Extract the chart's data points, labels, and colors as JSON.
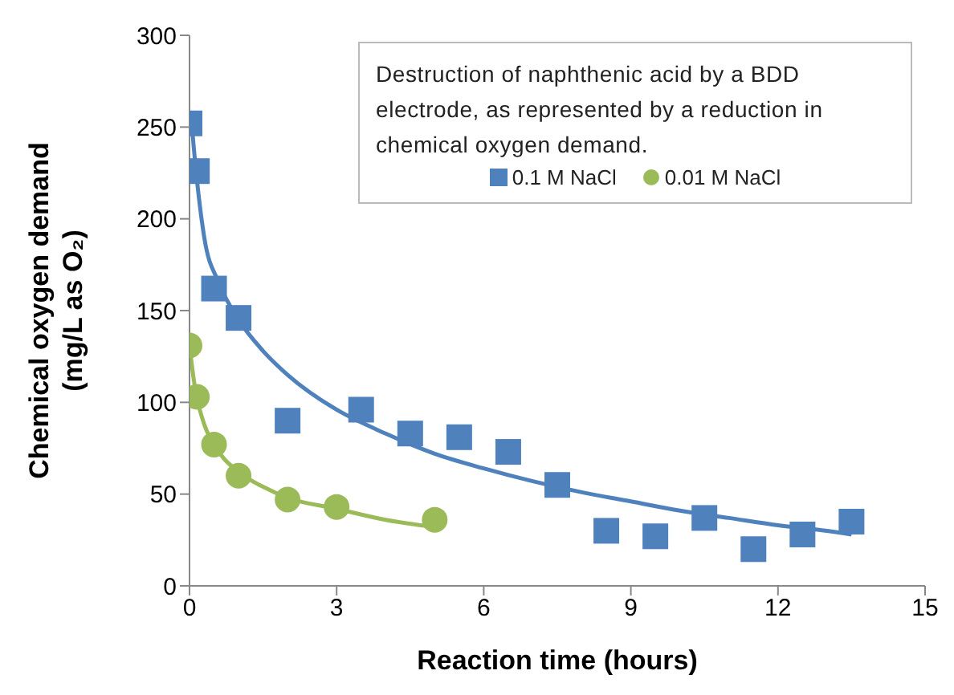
{
  "chart_data": {
    "type": "scatter",
    "xlabel": "Reaction time (hours)",
    "ylabel": "Chemical oxygen demand\n(mg/L as O₂)",
    "legend_title": "Destruction of naphthenic acid by a BDD electrode, as represented by a reduction in chemical oxygen demand.",
    "xlim": [
      0,
      15
    ],
    "xticks": [
      0,
      3,
      6,
      9,
      12,
      15
    ],
    "ylim": [
      0,
      300
    ],
    "yticks": [
      0,
      50,
      100,
      150,
      200,
      250,
      300
    ],
    "grid": false,
    "legend": "top right",
    "series": [
      {
        "name": "0.1 M NaCl",
        "marker": "square",
        "color": "#4f81bd",
        "x": [
          0,
          0.15,
          0.5,
          1,
          2,
          3.5,
          4.5,
          5.5,
          6.5,
          7.5,
          8.5,
          9.5,
          10.5,
          11.5,
          12.5,
          13.5
        ],
        "values": [
          252,
          226,
          162,
          146,
          90,
          96,
          83,
          81,
          73,
          55,
          30,
          27,
          37,
          20,
          28,
          35
        ]
      },
      {
        "name": "0.01 M NaCl",
        "marker": "circle",
        "color": "#9bbb59",
        "x": [
          0,
          0.15,
          0.5,
          1,
          2,
          3,
          5
        ],
        "values": [
          131,
          103,
          77,
          60,
          47,
          43,
          36
        ]
      },
      {
        "type": "line",
        "marker": "none",
        "color": "#4f81bd",
        "x": [
          0.05,
          0.1,
          0.3,
          0.6,
          1,
          1.5,
          2,
          3,
          4,
          5,
          6,
          7,
          8,
          9,
          10,
          11,
          12,
          13,
          13.5
        ],
        "values": [
          250,
          235,
          190,
          165,
          145,
          128,
          115,
          96,
          83,
          72,
          64,
          57,
          51,
          46,
          41,
          37,
          33,
          30,
          28
        ]
      },
      {
        "type": "line",
        "marker": "none",
        "color": "#9bbb59",
        "x": [
          0,
          0.1,
          0.3,
          0.5,
          1,
          1.5,
          2,
          3,
          4,
          5
        ],
        "values": [
          131,
          110,
          88,
          77,
          62,
          54,
          48,
          42,
          36,
          32
        ]
      }
    ]
  }
}
